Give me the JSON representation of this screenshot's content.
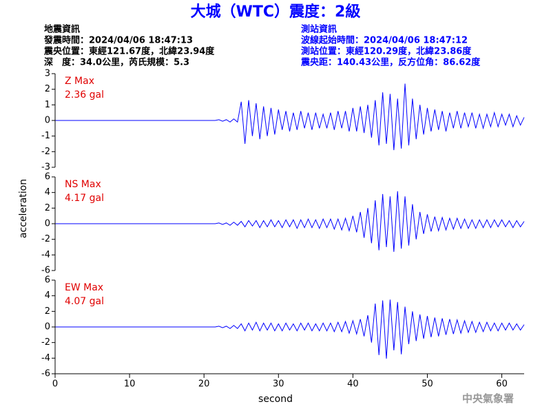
{
  "chart_data": {
    "type": "line",
    "title": "大城（WTC）震度：2級",
    "info_left": [
      "地震資訊",
      "發震時間：2024/04/06 18:47:13",
      "震央位置：東經121.67度，北緯23.94度",
      "深　度：34.0公里，芮氏規模：5.3"
    ],
    "info_right": [
      "測站資訊",
      "波線起始時間：2024/04/06 18:47:12",
      "測站位置：東經120.29度，北緯23.86度",
      "震央距：140.43公里，反方位角：86.62度"
    ],
    "y_label": "acceleration",
    "x_label": "second",
    "footer": "中央氣象署",
    "xlim": [
      0,
      63
    ],
    "xticks": [
      0,
      10,
      20,
      30,
      40,
      50,
      60
    ],
    "x": [
      0,
      0.5,
      1,
      1.5,
      2,
      2.5,
      3,
      3.5,
      4,
      4.5,
      5,
      5.5,
      6,
      6.5,
      7,
      7.5,
      8,
      8.5,
      9,
      9.5,
      10,
      10.5,
      11,
      11.5,
      12,
      12.5,
      13,
      13.5,
      14,
      14.5,
      15,
      15.5,
      16,
      16.5,
      17,
      17.5,
      18,
      18.5,
      19,
      19.5,
      20,
      20.5,
      21,
      21.5,
      22,
      22.5,
      23,
      23.5,
      24,
      24.5,
      25,
      25.5,
      26,
      26.5,
      27,
      27.5,
      28,
      28.5,
      29,
      29.5,
      30,
      30.5,
      31,
      31.5,
      32,
      32.5,
      33,
      33.5,
      34,
      34.5,
      35,
      35.5,
      36,
      36.5,
      37,
      37.5,
      38,
      38.5,
      39,
      39.5,
      40,
      40.5,
      41,
      41.5,
      42,
      42.5,
      43,
      43.5,
      44,
      44.5,
      45,
      45.5,
      46,
      46.5,
      47,
      47.5,
      48,
      48.5,
      49,
      49.5,
      50,
      50.5,
      51,
      51.5,
      52,
      52.5,
      53,
      53.5,
      54,
      54.5,
      55,
      55.5,
      56,
      56.5,
      57,
      57.5,
      58,
      58.5,
      59,
      59.5,
      60,
      60.5,
      61,
      61.5,
      62,
      62.5,
      63
    ],
    "series": [
      {
        "name": "Z Max",
        "max_label": "2.36 gal",
        "color": "#0000ff",
        "ylim": [
          -3,
          3
        ],
        "yticks": [
          -3,
          -2,
          -1,
          0,
          1,
          2,
          3
        ],
        "values": [
          0,
          0,
          0,
          0,
          0,
          0,
          0,
          0,
          0,
          0,
          0,
          0,
          0,
          0,
          0,
          0,
          0,
          0,
          0,
          0,
          0,
          0,
          0,
          0,
          0,
          0,
          0,
          0,
          0,
          0,
          0,
          0,
          0,
          0,
          0,
          0,
          0,
          0,
          0,
          0,
          0,
          0,
          0,
          0,
          0.05,
          -0.05,
          0.05,
          -0.1,
          0.1,
          -0.1,
          1.2,
          -1.5,
          1.3,
          -1.0,
          1.1,
          -1.2,
          0.9,
          -1.0,
          0.8,
          -0.9,
          0.7,
          -0.6,
          0.6,
          -0.7,
          0.5,
          -0.6,
          0.6,
          -0.5,
          0.5,
          -0.6,
          0.5,
          -0.5,
          0.4,
          -0.5,
          0.5,
          -0.6,
          0.6,
          -0.5,
          0.6,
          -0.7,
          0.8,
          -0.7,
          0.9,
          -0.8,
          1.0,
          -1.1,
          1.3,
          -1.6,
          1.8,
          -1.5,
          1.7,
          -1.9,
          1.4,
          -1.8,
          2.36,
          -1.6,
          1.4,
          -1.2,
          1.0,
          -0.9,
          0.8,
          -0.7,
          0.7,
          -0.6,
          0.6,
          -0.7,
          0.5,
          -0.5,
          0.6,
          -0.5,
          0.5,
          -0.4,
          0.5,
          -0.5,
          0.4,
          -0.5,
          0.4,
          -0.4,
          0.5,
          -0.4,
          0.4,
          -0.3,
          0.4,
          -0.4,
          0.3,
          -0.3,
          0.2
        ]
      },
      {
        "name": "NS Max",
        "max_label": "4.17 gal",
        "color": "#0000ff",
        "ylim": [
          -6,
          6
        ],
        "yticks": [
          -6,
          -4,
          -2,
          0,
          2,
          4,
          6
        ],
        "values": [
          0,
          0,
          0,
          0,
          0,
          0,
          0,
          0,
          0,
          0,
          0,
          0,
          0,
          0,
          0,
          0,
          0,
          0,
          0,
          0,
          0,
          0,
          0,
          0,
          0,
          0,
          0,
          0,
          0,
          0,
          0,
          0,
          0,
          0,
          0,
          0,
          0,
          0,
          0,
          0,
          0,
          0,
          0,
          0,
          0.1,
          -0.1,
          0.1,
          -0.2,
          0.2,
          -0.2,
          0.3,
          -0.4,
          0.4,
          -0.3,
          0.4,
          -0.5,
          0.4,
          -0.4,
          0.5,
          -0.4,
          0.4,
          -0.5,
          0.5,
          -0.4,
          0.5,
          -0.6,
          0.5,
          -0.5,
          0.6,
          -0.5,
          0.5,
          -0.6,
          0.6,
          -0.5,
          0.6,
          -0.7,
          0.6,
          -0.8,
          0.7,
          -0.9,
          1.0,
          -1.1,
          1.5,
          -1.8,
          2.0,
          -2.5,
          3.0,
          -3.4,
          3.8,
          -3.0,
          3.5,
          -3.6,
          4.17,
          -3.2,
          3.5,
          -2.8,
          2.5,
          -2.0,
          1.5,
          -1.3,
          1.2,
          -1.0,
          0.9,
          -0.9,
          0.8,
          -0.8,
          0.7,
          -0.7,
          0.7,
          -0.6,
          0.6,
          -0.6,
          0.5,
          -0.6,
          0.5,
          -0.5,
          0.5,
          -0.5,
          0.5,
          -0.4,
          0.5,
          -0.4,
          0.4,
          -0.5,
          0.4,
          -0.4,
          0.3
        ]
      },
      {
        "name": "EW Max",
        "max_label": "4.07 gal",
        "color": "#0000ff",
        "ylim": [
          -6,
          6
        ],
        "yticks": [
          -6,
          -4,
          -2,
          0,
          2,
          4,
          6
        ],
        "values": [
          0,
          0,
          0,
          0,
          0,
          0,
          0,
          0,
          0,
          0,
          0,
          0,
          0,
          0,
          0,
          0,
          0,
          0,
          0,
          0,
          0,
          0,
          0,
          0,
          0,
          0,
          0,
          0,
          0,
          0,
          0,
          0,
          0,
          0,
          0,
          0,
          0,
          0,
          0,
          0,
          0,
          0,
          0,
          0,
          0.1,
          -0.1,
          0.1,
          -0.2,
          0.2,
          -0.2,
          0.4,
          -0.5,
          0.5,
          -0.4,
          0.6,
          -0.5,
          0.5,
          -0.4,
          0.5,
          -0.5,
          0.4,
          -0.5,
          0.5,
          -0.4,
          0.4,
          -0.5,
          0.5,
          -0.4,
          0.5,
          -0.5,
          0.4,
          -0.5,
          0.5,
          -0.5,
          0.5,
          -0.6,
          0.6,
          -0.6,
          0.7,
          -0.8,
          0.8,
          -0.9,
          1.0,
          -1.2,
          1.5,
          -2.0,
          3.0,
          -3.6,
          3.4,
          -4.07,
          3.5,
          -3.0,
          3.2,
          -3.5,
          2.6,
          -2.2,
          2.0,
          -1.8,
          1.6,
          -1.5,
          1.4,
          -1.3,
          1.2,
          -1.2,
          1.1,
          -1.0,
          1.0,
          -0.9,
          0.9,
          -0.8,
          0.8,
          -0.7,
          0.7,
          -0.7,
          0.6,
          -0.6,
          0.6,
          -0.5,
          0.5,
          -0.5,
          0.5,
          -0.4,
          0.5,
          -0.4,
          0.4,
          -0.4,
          0.3
        ]
      }
    ]
  }
}
